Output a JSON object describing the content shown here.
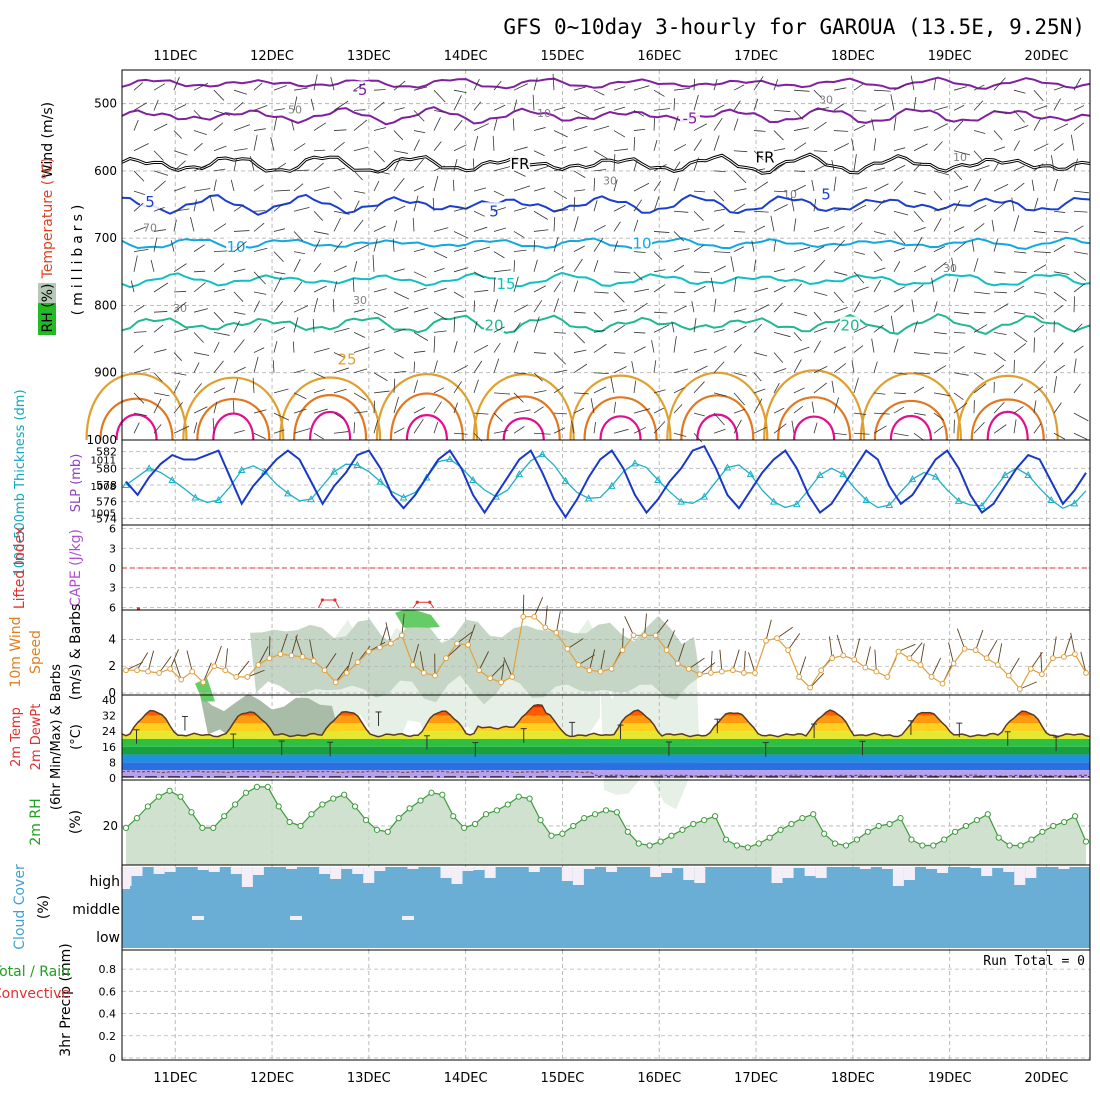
{
  "chart_data": {
    "type": "meteogram",
    "title": "GFS 0~10day 3-hourly for GAROUA (13.5E, 9.25N)",
    "x_labels": [
      "11DEC",
      "12DEC",
      "13DEC",
      "14DEC",
      "15DEC",
      "16DEC",
      "17DEC",
      "18DEC",
      "19DEC",
      "20DEC"
    ],
    "colors": {
      "purple": "#8020a0",
      "black": "#000000",
      "blue": "#1a3fd0",
      "cyan": "#10a8e0",
      "teal": "#10c0c0",
      "green": "#20b890",
      "orange": "#e0a030",
      "darkorange": "#e07820",
      "magenta": "#e01090",
      "rhlight": "#e6f0e6",
      "rhmid": "#c6d6c6",
      "rhdark": "#a8bca8",
      "rhgreen": "#66cc66",
      "grid": "#b4b4b4",
      "thickness": "#20b0c8",
      "slp": "#1838c8",
      "wind": "#e0a040",
      "rh2m": "#3c9c3c",
      "cloud": "#6aaed6",
      "red": "#e03030"
    },
    "panels": {
      "upper": {
        "y_label_wind": "Wind (m/s)",
        "y_label_temp": "Temperature (°C)",
        "y_label_rh": "RH (%)",
        "y_label_units": "(millibars)",
        "levels": [
          500,
          600,
          700,
          800,
          900,
          1000
        ],
        "range": [
          450,
          1000
        ],
        "isotherms": [
          {
            "label": "-5",
            "value": -5,
            "base": 470,
            "amp": 8,
            "color_key": "purple"
          },
          {
            "label": "-5",
            "value": -5,
            "base": 518,
            "amp": 12,
            "color_key": "purple"
          },
          {
            "label": "FR",
            "value": 0,
            "base": 590,
            "amp": 14,
            "color_key": "black"
          },
          {
            "label": "5",
            "value": 5,
            "base": 650,
            "amp": 14,
            "color_key": "blue"
          },
          {
            "label": "10",
            "value": 10,
            "base": 708,
            "amp": 8,
            "color_key": "cyan"
          },
          {
            "label": "15",
            "value": 15,
            "base": 762,
            "amp": 10,
            "color_key": "teal"
          },
          {
            "label": "20",
            "value": 20,
            "base": 828,
            "amp": 14,
            "color_key": "green"
          }
        ],
        "contour_labels": [
          "-5",
          "-5",
          "FR",
          "FR",
          "5",
          "5",
          "5",
          "10",
          "10",
          "15",
          "20",
          "20",
          "25"
        ],
        "rh_labels": [
          "30",
          "50",
          "10",
          "30",
          "10",
          "30",
          "70",
          "30",
          "30",
          "10"
        ]
      },
      "thickness": {
        "y_label_thickness": "1000-500mb Thickness (dm)",
        "y_label_slp": "SLP (mb)",
        "thickness_ticks": [
          574,
          576,
          578,
          580,
          582
        ],
        "slp_ticks": [
          1005,
          1008,
          1011
        ],
        "thickness": [
          578,
          579,
          580,
          579.5,
          578.6,
          577.6,
          576.5,
          575.9,
          576.2,
          577.8,
          579.8,
          580.3,
          579.6,
          578.1,
          577,
          576.1,
          576.3,
          577.9,
          579.6,
          580.5,
          580.4,
          579.6,
          578.4,
          577.2,
          576.5,
          577.1,
          578.9,
          580.8,
          581.1,
          580.1,
          578.6,
          577.4,
          576.6,
          577.4,
          579.3,
          580.9,
          581.7,
          580.4,
          578.5,
          577.1,
          576.4,
          576.5,
          577.9,
          579.6,
          580.6,
          580.1,
          578.6,
          577.2,
          576,
          575.8,
          576.6,
          578.4,
          580.1,
          580.4,
          579.3,
          577.4,
          576,
          575.3,
          575.7,
          577.4,
          579.2,
          580,
          579.3,
          577.6,
          576.2,
          575.3,
          575.6,
          577.2,
          578.7,
          579.5,
          579,
          577.4,
          576.1,
          575.6,
          575.5,
          577.4,
          579.2,
          580,
          579.2,
          577.6,
          576.2,
          575.2,
          575.8,
          577.3
        ],
        "slp": [
          1008.5,
          1007,
          1009,
          1010.5,
          1011.5,
          1011,
          1011,
          1011.5,
          1012,
          1009,
          1006,
          1008,
          1009.5,
          1011,
          1012,
          1011,
          1008.5,
          1006,
          1008,
          1009.5,
          1011.5,
          1012,
          1010,
          1007,
          1005.5,
          1007,
          1009,
          1011,
          1012,
          1010,
          1007,
          1005,
          1007,
          1009,
          1011,
          1012,
          1009.5,
          1006.5,
          1004.5,
          1006.5,
          1009,
          1011,
          1012,
          1010,
          1007,
          1005,
          1006.5,
          1008.5,
          1010,
          1012,
          1012.5,
          1010,
          1007,
          1005.5,
          1007.5,
          1009.5,
          1011,
          1012,
          1010,
          1007,
          1005,
          1006,
          1008,
          1010,
          1012,
          1011,
          1008,
          1006,
          1007,
          1009,
          1011,
          1012,
          1010,
          1007,
          1005,
          1006,
          1008,
          1010,
          1011.5,
          1011,
          1008.5,
          1006,
          1007.5,
          1009.5
        ]
      },
      "stability": {
        "y_label_li": "Lifted Index",
        "y_label_cape": "CAPE (J/kg)",
        "ticks": [
          6,
          3,
          0,
          -3,
          -6
        ],
        "marks": [
          {
            "x_day": 10.62,
            "value": -5.8
          },
          {
            "x_day": 12.52,
            "value": -4.2
          },
          {
            "x_day": 12.65,
            "value": -4.2
          },
          {
            "x_day": 13.5,
            "value": -4.6
          },
          {
            "x_day": 13.63,
            "value": -4.6
          }
        ]
      },
      "wind10m": {
        "y_label_main": "10m Wind",
        "y_label_speed": "Speed",
        "y_label_units": "(m/s) & Barbs",
        "ticks": [
          0,
          2,
          4
        ],
        "speed": [
          1.7,
          1.7,
          1.6,
          1.5,
          1.8,
          1,
          1.6,
          0.8,
          2,
          1.7,
          1.2,
          1.2,
          2.1,
          2.6,
          2.9,
          2.8,
          2.7,
          2.4,
          1.7,
          0.8,
          1.5,
          2.3,
          3.1,
          3.4,
          3.7,
          4.3,
          2.1,
          1.5,
          1.3,
          2.6,
          3.7,
          3.6,
          1.7,
          1.1,
          0.8,
          1.2,
          5.7,
          5.7,
          4.9,
          4.5,
          3.3,
          2.1,
          1.7,
          1.6,
          1.8,
          3.2,
          4.3,
          4.3,
          4.3,
          3.2,
          2.2,
          1.8,
          1.4,
          1.5,
          1.6,
          1.7,
          1.5,
          1.5,
          3.9,
          4.1,
          3.2,
          1.2,
          0.4,
          1.7,
          2.6,
          2.8,
          2.5,
          1.9,
          1.6,
          1.2,
          3.1,
          2.6,
          2.1,
          1.2,
          0.7,
          2.2,
          3.3,
          3.2,
          2.6,
          2.1,
          1.3,
          0.3,
          1.8,
          1.4,
          2.6,
          2.7,
          2.9,
          1.5
        ]
      },
      "temp2m": {
        "y_label_temp": "2m Temp",
        "y_label_dewpt": "2m DewPt",
        "y_label_minmax": "(6hr Min/Max) & Barbs",
        "ticks": [
          0,
          8,
          16,
          24,
          32,
          40
        ],
        "units": "(°C)"
      },
      "rh2m": {
        "y_label": "2m RH",
        "units": "(%)",
        "tick_label": "20",
        "values": [
          19,
          24,
          30,
          35,
          38,
          35,
          27,
          19,
          19,
          25,
          31,
          37,
          40,
          40,
          30,
          22,
          20,
          26,
          31,
          34,
          36,
          30,
          23,
          18,
          17,
          24,
          29,
          33,
          37,
          36,
          25,
          19,
          21,
          26,
          28,
          31,
          35,
          34,
          23,
          15,
          16,
          20,
          24,
          26,
          28,
          27,
          17,
          11,
          10,
          12,
          15,
          18,
          21,
          23,
          25,
          13,
          10,
          9,
          11,
          14,
          18,
          21,
          24,
          26,
          16,
          11,
          10,
          13,
          17,
          20,
          21,
          24,
          13,
          10,
          10,
          13,
          17,
          20,
          23,
          26,
          14,
          10,
          10,
          13,
          17,
          20,
          22,
          25,
          12
        ]
      },
      "cloud": {
        "y_label": "Cloud Cover",
        "units": "(%)",
        "levels": [
          "high",
          "middle",
          "low"
        ]
      },
      "precip": {
        "y_label_main": "3hr Precip (mm)",
        "y_label_total": "Total / Rain",
        "y_label_convective": "Convective",
        "ticks": [
          "0",
          "0.2",
          "0.4",
          "0.6",
          "0.8"
        ],
        "run_total": "Run Total = 0"
      }
    }
  }
}
